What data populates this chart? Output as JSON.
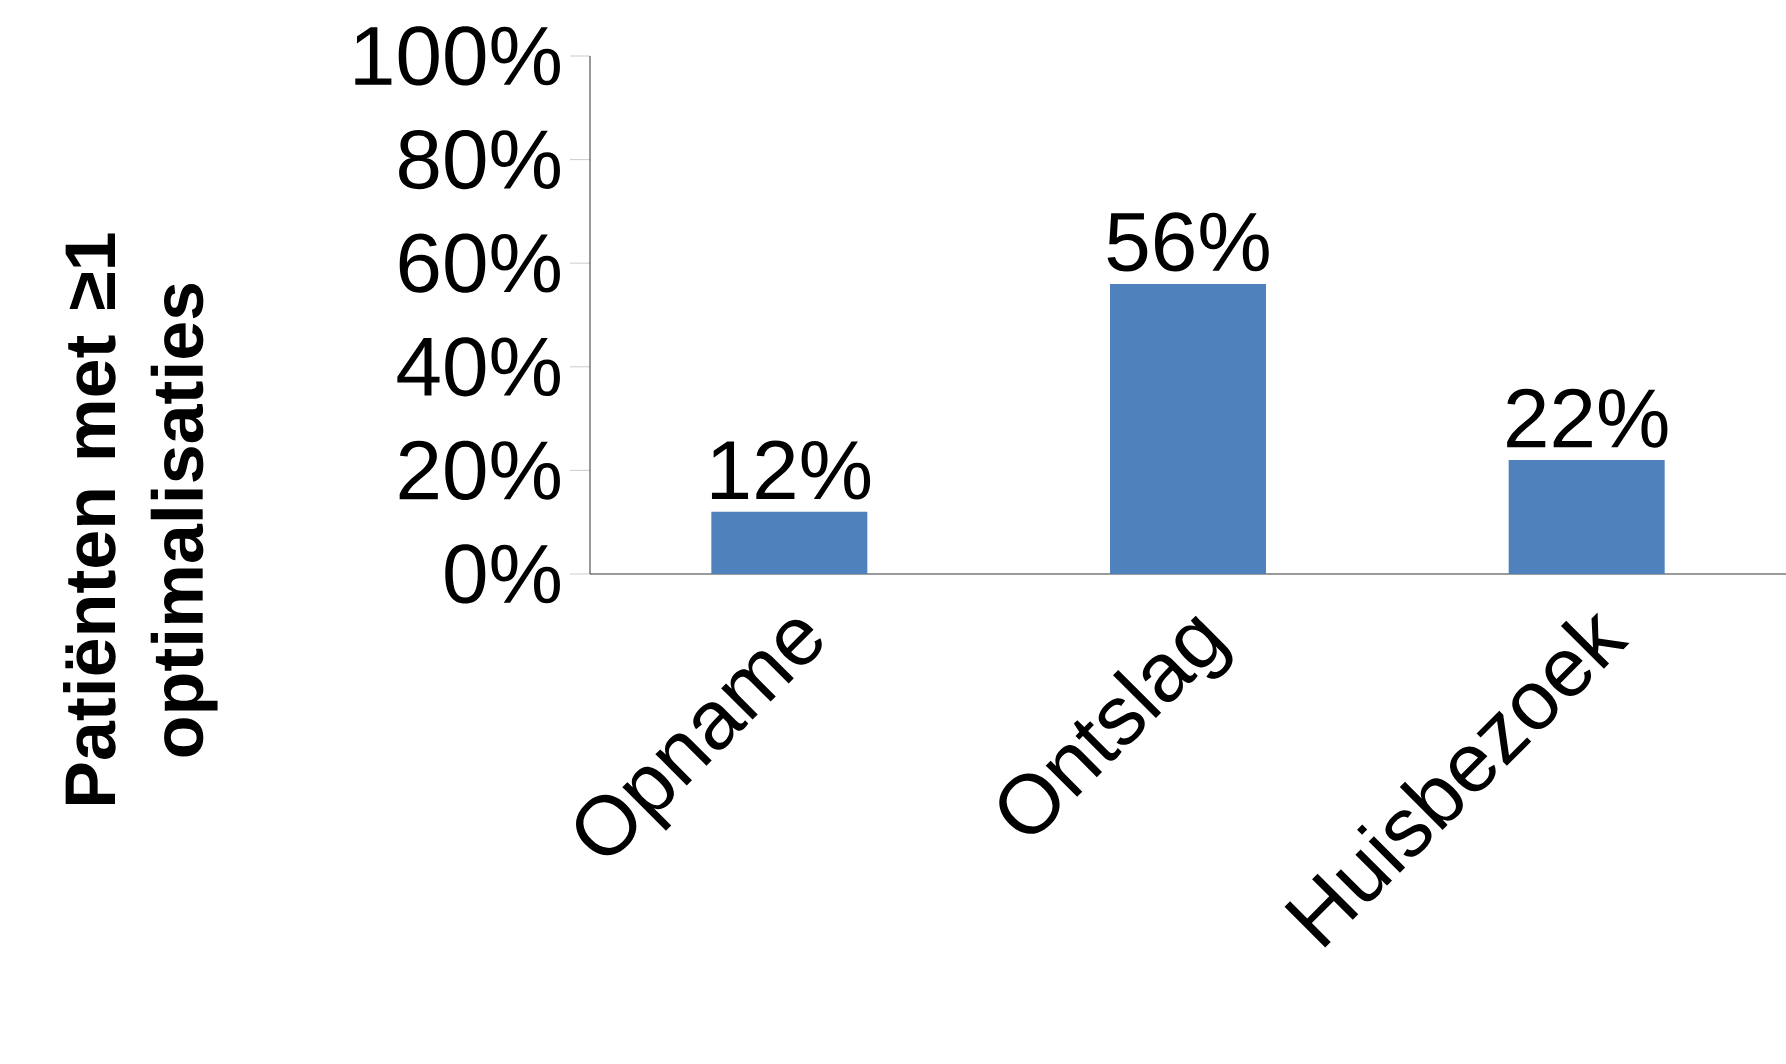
{
  "chart_data": {
    "type": "bar",
    "ylabel": "Patiënten met ≥1 optimalisaties",
    "categories": [
      "Opname",
      "Ontslag",
      "Huisbezoek"
    ],
    "values": [
      12,
      56,
      22
    ],
    "value_labels": [
      "12%",
      "56%",
      "22%"
    ],
    "color": "#4f81bd",
    "ylim": [
      0,
      100
    ],
    "yticks": [
      {
        "value": 0,
        "label": "0%"
      },
      {
        "value": 20,
        "label": "20%"
      },
      {
        "value": 40,
        "label": "40%"
      },
      {
        "value": 60,
        "label": "60%"
      },
      {
        "value": 80,
        "label": "80%"
      },
      {
        "value": 100,
        "label": "100%"
      }
    ]
  }
}
